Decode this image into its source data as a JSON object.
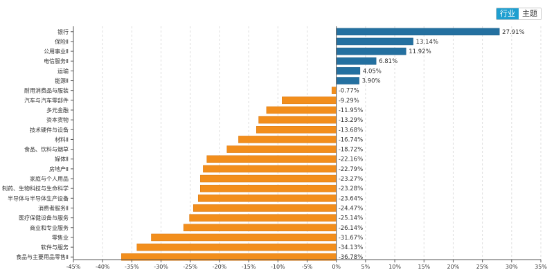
{
  "toggle": {
    "items": [
      "行业",
      "主题"
    ],
    "active": 0
  },
  "colors": {
    "positive": "#2470a0",
    "negative": "#f28e1c",
    "grid": "#dddddd",
    "axis": "#555555"
  },
  "chart_data": {
    "type": "bar",
    "orientation": "horizontal",
    "title": "",
    "xlabel": "",
    "ylabel": "",
    "xlim": [
      -45,
      35
    ],
    "xticks": [
      -45,
      -40,
      -35,
      -30,
      -25,
      -20,
      -15,
      -10,
      -5,
      0,
      5,
      10,
      15,
      20,
      25,
      30,
      35
    ],
    "xtick_labels": [
      "-45%",
      "-40%",
      "-35%",
      "-30%",
      "-25%",
      "-20%",
      "-15%",
      "-10%",
      "-5%",
      "0%",
      "5%",
      "10%",
      "15%",
      "20%",
      "25%",
      "30%",
      "35%"
    ],
    "grid": "vertical dashed",
    "categories": [
      "银行",
      "保险Ⅱ",
      "公用事业Ⅱ",
      "电信服务Ⅱ",
      "运输",
      "能源Ⅱ",
      "耐用消费品与服装",
      "汽车与汽车零部件",
      "多元金融",
      "资本货物",
      "技术硬件与设备",
      "材料Ⅱ",
      "食品、饮料与烟草",
      "媒体Ⅱ",
      "房地产Ⅱ",
      "家庭与个人用品",
      "制药、生物科技与生命科学",
      "半导体与半导体生产设备",
      "消费者服务Ⅱ",
      "医疗保健设备与服务",
      "商业和专业服务",
      "零售业",
      "软件与服务",
      "食品与主要用品零售Ⅱ"
    ],
    "values": [
      27.91,
      13.14,
      11.92,
      6.81,
      4.05,
      3.9,
      -0.77,
      -9.29,
      -11.95,
      -13.29,
      -13.68,
      -16.74,
      -18.72,
      -22.16,
      -22.79,
      -23.27,
      -23.28,
      -23.64,
      -24.47,
      -25.14,
      -26.14,
      -31.67,
      -34.13,
      -36.78
    ],
    "labels": [
      "27.91%",
      "13.14%",
      "11.92%",
      "6.81%",
      "4.05%",
      "3.90%",
      "-0.77%",
      "-9.29%",
      "-11.95%",
      "-13.29%",
      "-13.68%",
      "-16.74%",
      "-18.72%",
      "-22.16%",
      "-22.79%",
      "-23.27%",
      "-23.28%",
      "-23.64%",
      "-24.47%",
      "-25.14%",
      "-26.14%",
      "-31.67%",
      "-34.13%",
      "-36.78%"
    ]
  }
}
